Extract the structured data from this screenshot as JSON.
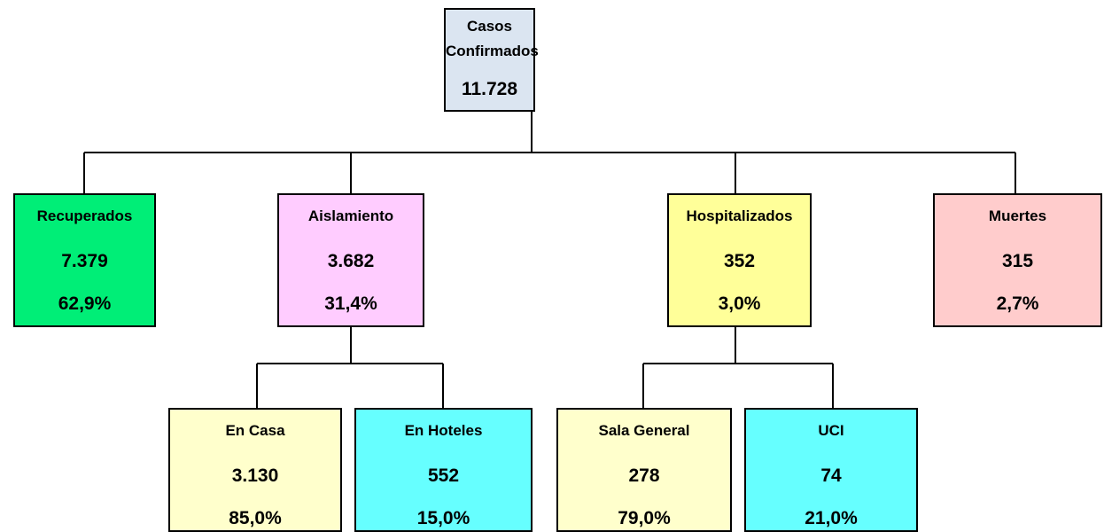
{
  "root": {
    "label": "Casos Confirmados",
    "value": "11.728"
  },
  "nodes": [
    {
      "label": "Recuperados",
      "value": "7.379",
      "percent": "62,9%"
    },
    {
      "label": "Aislamiento",
      "value": "3.682",
      "percent": "31,4%"
    },
    {
      "label": "Hospitalizados",
      "value": "352",
      "percent": "3,0%"
    },
    {
      "label": "Muertes",
      "value": "315",
      "percent": "2,7%"
    }
  ],
  "subnodes": [
    {
      "label": "En Casa",
      "value": "3.130",
      "percent": "85,0%"
    },
    {
      "label": "En Hoteles",
      "value": "552",
      "percent": "15,0%"
    },
    {
      "label": "Sala General",
      "value": "278",
      "percent": "79,0%"
    },
    {
      "label": "UCI",
      "value": "74",
      "percent": "21,0%"
    }
  ]
}
